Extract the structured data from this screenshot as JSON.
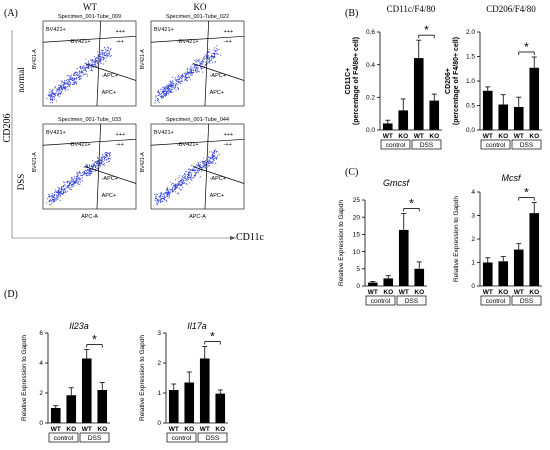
{
  "panel_labels": {
    "a": "(A)",
    "b": "(B)",
    "c": "(C)",
    "d": "(D)"
  },
  "flow": {
    "col_wt": "WT",
    "col_ko": "KO",
    "row_normal": "normal",
    "row_dss": "DSS",
    "y_axis": "CD206",
    "x_axis": "CD11c",
    "dot_color": "#2b3bd6",
    "plots": [
      {
        "title": "Specimen_001-Tube_009",
        "q_ul": "BV421+",
        "q_um": "-BV421+",
        "q_ur1": "+++",
        "q_ur2": "-++",
        "q_ml": "",
        "q_lr1": "-APC+",
        "q_lr2": "APC+",
        "ylabel": "BV421-A",
        "xlabel": ""
      },
      {
        "title": "Specimen_001-Tube_022",
        "q_ul": "BV421+",
        "q_um": "-BV421+",
        "q_ur1": "+++",
        "q_ur2": "-++",
        "q_ml": "",
        "q_lr1": "-APC+",
        "q_lr2": "APC+",
        "ylabel": "BV421-A",
        "xlabel": ""
      },
      {
        "title": "Specimen_001-Tube_033",
        "q_ul": "BV421+",
        "q_um": "-BV421+",
        "q_ur1": "+++",
        "q_ur2": "-++",
        "q_ml": "",
        "q_lr1": "-APC+",
        "q_lr2": "APC+",
        "ylabel": "BV421-A",
        "xlabel": "APC-A"
      },
      {
        "title": "Specimen_001-Tube_044",
        "q_ul": "BV421+",
        "q_um": "-BV421+",
        "q_ur1": "+++",
        "q_ur2": "-++",
        "q_ml": "",
        "q_lr1": "-APC+",
        "q_lr2": "APC+",
        "ylabel": "BV421-A",
        "xlabel": "APC-A"
      }
    ]
  },
  "groups": {
    "control": "control",
    "dss": "DSS",
    "wt": "WT",
    "ko": "KO"
  },
  "chart_data": [
    {
      "id": "cd11c",
      "type": "bar",
      "title": "CD11c/F4/80",
      "ylabel": "CD11C+ (percentage of F4/80+ cell)",
      "categories": [
        "WT",
        "KO",
        "WT",
        "KO"
      ],
      "values": [
        0.04,
        0.12,
        0.44,
        0.18
      ],
      "errors": [
        0.02,
        0.07,
        0.11,
        0.04
      ],
      "ylim": [
        0,
        0.6
      ],
      "ticks": [
        "0.0",
        "0.2",
        "0.4",
        "0.6"
      ],
      "significance": "*"
    },
    {
      "id": "cd206",
      "type": "bar",
      "title": "CD206/F4/80",
      "ylabel": "CD206+ (percentage of F4/80+ cell)",
      "categories": [
        "WT",
        "KO",
        "WT",
        "KO"
      ],
      "values": [
        0.8,
        0.52,
        0.47,
        1.27
      ],
      "errors": [
        0.08,
        0.2,
        0.2,
        0.22
      ],
      "ylim": [
        0,
        2.0
      ],
      "ticks": [
        "0.0",
        "0.5",
        "1.0",
        "1.5",
        "2.0"
      ],
      "significance": "*"
    },
    {
      "id": "gmcsf",
      "type": "bar",
      "title": "Gmcsf",
      "ylabel": "Relative Expression to Gapdh",
      "categories": [
        "WT",
        "KO",
        "WT",
        "KO"
      ],
      "values": [
        1.0,
        2.2,
        16.3,
        5.0
      ],
      "errors": [
        0.3,
        0.8,
        4.8,
        2.0
      ],
      "ylim": [
        0,
        25
      ],
      "ticks": [
        "0",
        "5",
        "10",
        "15",
        "20",
        "25"
      ],
      "significance": "*"
    },
    {
      "id": "mcsf",
      "type": "bar",
      "title": "Mcsf",
      "ylabel": "Relative Expression to Gapdh",
      "categories": [
        "WT",
        "KO",
        "WT",
        "KO"
      ],
      "values": [
        1.0,
        1.05,
        1.55,
        3.1
      ],
      "errors": [
        0.2,
        0.2,
        0.25,
        0.45
      ],
      "ylim": [
        0,
        4
      ],
      "ticks": [
        "0",
        "1",
        "2",
        "3",
        "4"
      ],
      "significance": "*"
    },
    {
      "id": "il23a",
      "type": "bar",
      "title": "Il23a",
      "ylabel": "Relative Expression to Gapdh",
      "categories": [
        "WT",
        "KO",
        "WT",
        "KO"
      ],
      "values": [
        1.0,
        1.85,
        4.3,
        2.2
      ],
      "errors": [
        0.15,
        0.5,
        0.6,
        0.5
      ],
      "ylim": [
        0,
        6
      ],
      "ticks": [
        "0",
        "2",
        "4",
        "6"
      ],
      "significance": "*"
    },
    {
      "id": "il17a",
      "type": "bar",
      "title": "Il17a",
      "ylabel": "Relative Expression to Gapdh",
      "categories": [
        "WT",
        "KO",
        "WT",
        "KO"
      ],
      "values": [
        1.1,
        1.35,
        2.15,
        0.98
      ],
      "errors": [
        0.2,
        0.35,
        0.4,
        0.12
      ],
      "ylim": [
        0,
        3
      ],
      "ticks": [
        "0",
        "1",
        "2",
        "3"
      ],
      "significance": "*"
    }
  ]
}
